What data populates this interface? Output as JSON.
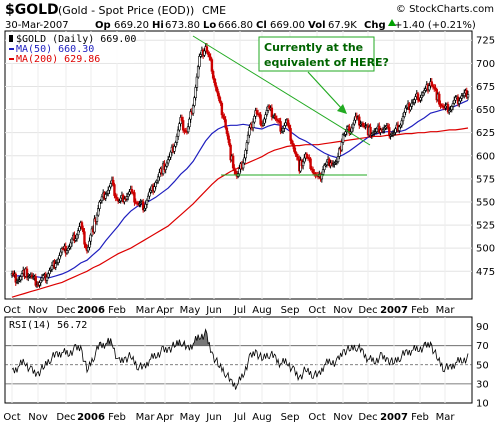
{
  "header": {
    "ticker": "$GOLD",
    "name": "(Gold - Spot Price (EOD))",
    "exchange": "CME",
    "credit": "© StockCharts.com",
    "date": "30-Mar-2007",
    "op_label": "Op",
    "op": "669.20",
    "hi_label": "Hi",
    "hi": "673.80",
    "lo_label": "Lo",
    "lo": "666.80",
    "cl_label": "Cl",
    "cl": "669.00",
    "vol_label": "Vol",
    "vol": "67.9K",
    "chg_label": "Chg",
    "chg": "+1.40 (+0.21%)",
    "chg_arrow": "triangle-up-icon"
  },
  "legend": {
    "price": "$GOLD (Daily) 669.00",
    "ma50": "MA(50) 660.30",
    "ma200": "MA(200) 629.86"
  },
  "rsi_legend": "RSI(14) 56.72",
  "annotation": {
    "lines": [
      "Currently at the",
      "equivalent of HERE?"
    ]
  },
  "colors": {
    "up": "#000000",
    "down": "#cc0000",
    "ma50": "#1f1fbf",
    "ma200": "#dd0000",
    "trend": "#22aa22",
    "annotation_text": "#006400",
    "rsi_fill": "#777777"
  },
  "chart_data": [
    {
      "type": "candlestick",
      "title": "$GOLD (Gold - Spot Price (EOD)) CME",
      "ylim": [
        445,
        735
      ],
      "y_ticks": [
        475,
        500,
        525,
        550,
        575,
        600,
        625,
        650,
        675,
        700,
        725
      ],
      "x_ticks": [
        {
          "label": "Oct",
          "bold": false
        },
        {
          "label": "Nov",
          "bold": false
        },
        {
          "label": "Dec",
          "bold": false
        },
        {
          "label": "2006",
          "bold": true
        },
        {
          "label": "Feb",
          "bold": false
        },
        {
          "label": "Mar",
          "bold": false
        },
        {
          "label": "Apr",
          "bold": false
        },
        {
          "label": "May",
          "bold": false
        },
        {
          "label": "Jun",
          "bold": false
        },
        {
          "label": "Jul",
          "bold": false
        },
        {
          "label": "Aug",
          "bold": false
        },
        {
          "label": "Sep",
          "bold": false
        },
        {
          "label": "Oct",
          "bold": false
        },
        {
          "label": "Nov",
          "bold": false
        },
        {
          "label": "Dec",
          "bold": false
        },
        {
          "label": "2007",
          "bold": true
        },
        {
          "label": "Feb",
          "bold": false
        },
        {
          "label": "Mar",
          "bold": false
        }
      ],
      "weeks": [
        "Sep-2005",
        "Oct-2005",
        "Oct-2005",
        "Oct-2005",
        "Oct-2005",
        "Nov-2005",
        "Nov-2005",
        "Nov-2005",
        "Nov-2005",
        "Dec-2005",
        "Dec-2005",
        "Dec-2005",
        "Dec-2005",
        "Jan-2006",
        "Jan-2006",
        "Jan-2006",
        "Jan-2006",
        "Feb-2006",
        "Feb-2006",
        "Feb-2006",
        "Feb-2006",
        "Mar-2006",
        "Mar-2006",
        "Mar-2006",
        "Mar-2006",
        "Mar-2006",
        "Apr-2006",
        "Apr-2006",
        "Apr-2006",
        "Apr-2006",
        "May-2006",
        "May-2006",
        "May-2006",
        "May-2006",
        "Jun-2006",
        "Jun-2006",
        "Jun-2006",
        "Jun-2006",
        "Jul-2006",
        "Jul-2006",
        "Jul-2006",
        "Jul-2006",
        "Aug-2006",
        "Aug-2006",
        "Aug-2006",
        "Aug-2006",
        "Sep-2006",
        "Sep-2006",
        "Sep-2006",
        "Sep-2006",
        "Oct-2006",
        "Oct-2006",
        "Oct-2006",
        "Oct-2006",
        "Nov-2006",
        "Nov-2006",
        "Nov-2006",
        "Nov-2006",
        "Dec-2006",
        "Dec-2006",
        "Dec-2006",
        "Dec-2006",
        "Jan-2007",
        "Jan-2007",
        "Jan-2007",
        "Jan-2007",
        "Feb-2007",
        "Feb-2007",
        "Feb-2007",
        "Feb-2007",
        "Mar-2007",
        "Mar-2007",
        "Mar-2007",
        "Mar-2007"
      ],
      "close": [
        470,
        466,
        474,
        469,
        462,
        466,
        475,
        486,
        496,
        500,
        512,
        525,
        498,
        522,
        548,
        560,
        569,
        550,
        556,
        560,
        549,
        545,
        558,
        572,
        585,
        594,
        612,
        637,
        625,
        657,
        704,
        718,
        695,
        662,
        640,
        600,
        576,
        594,
        626,
        648,
        636,
        650,
        643,
        630,
        636,
        611,
        588,
        600,
        587,
        573,
        589,
        595,
        590,
        623,
        628,
        640,
        636,
        627,
        624,
        630,
        628,
        623,
        634,
        648,
        657,
        664,
        668,
        681,
        665,
        651,
        651,
        659,
        664,
        669
      ],
      "series": [
        {
          "name": "MA(50)",
          "values": [
            470,
            470,
            470,
            469,
            469,
            468,
            468,
            470,
            472,
            475,
            479,
            484,
            487,
            493,
            499,
            508,
            516,
            524,
            533,
            540,
            545,
            548,
            551,
            555,
            560,
            565,
            572,
            580,
            586,
            594,
            605,
            616,
            624,
            629,
            632,
            633,
            633,
            634,
            633,
            630,
            629,
            632,
            634,
            633,
            629,
            624,
            619,
            616,
            612,
            607,
            603,
            600,
            598,
            601,
            605,
            610,
            615,
            620,
            623,
            625,
            626,
            626,
            626,
            628,
            632,
            637,
            641,
            646,
            648,
            650,
            651,
            654,
            657,
            660
          ]
        },
        {
          "name": "MA(200)",
          "values": [
            447,
            449,
            451,
            453,
            455,
            457,
            459,
            461,
            463,
            466,
            469,
            472,
            475,
            479,
            482,
            486,
            490,
            494,
            497,
            500,
            504,
            508,
            512,
            516,
            520,
            524,
            530,
            536,
            542,
            548,
            555,
            562,
            569,
            575,
            579,
            583,
            586,
            590,
            593,
            596,
            599,
            603,
            606,
            608,
            610,
            611,
            611,
            612,
            612,
            612,
            613,
            614,
            615,
            616,
            617,
            618,
            619,
            620,
            621,
            621,
            622,
            622,
            623,
            624,
            624,
            625,
            625,
            626,
            626,
            627,
            628,
            628,
            629,
            630
          ]
        }
      ]
    },
    {
      "type": "line",
      "title": "RSI(14)",
      "ylim": [
        10,
        100
      ],
      "y_ticks": [
        10,
        30,
        50,
        70,
        90
      ],
      "reference_lines": [
        30,
        50,
        70
      ],
      "series": [
        {
          "name": "RSI(14)",
          "values": [
            42,
            48,
            54,
            44,
            40,
            47,
            56,
            60,
            63,
            62,
            66,
            68,
            44,
            58,
            70,
            72,
            75,
            52,
            56,
            59,
            50,
            46,
            55,
            60,
            64,
            66,
            70,
            76,
            66,
            72,
            80,
            82,
            62,
            50,
            44,
            32,
            28,
            40,
            56,
            64,
            56,
            62,
            58,
            51,
            54,
            44,
            36,
            45,
            41,
            38,
            50,
            54,
            52,
            64,
            66,
            70,
            64,
            56,
            54,
            58,
            56,
            52,
            58,
            62,
            65,
            67,
            68,
            72,
            58,
            48,
            46,
            52,
            55,
            57
          ]
        }
      ]
    }
  ]
}
